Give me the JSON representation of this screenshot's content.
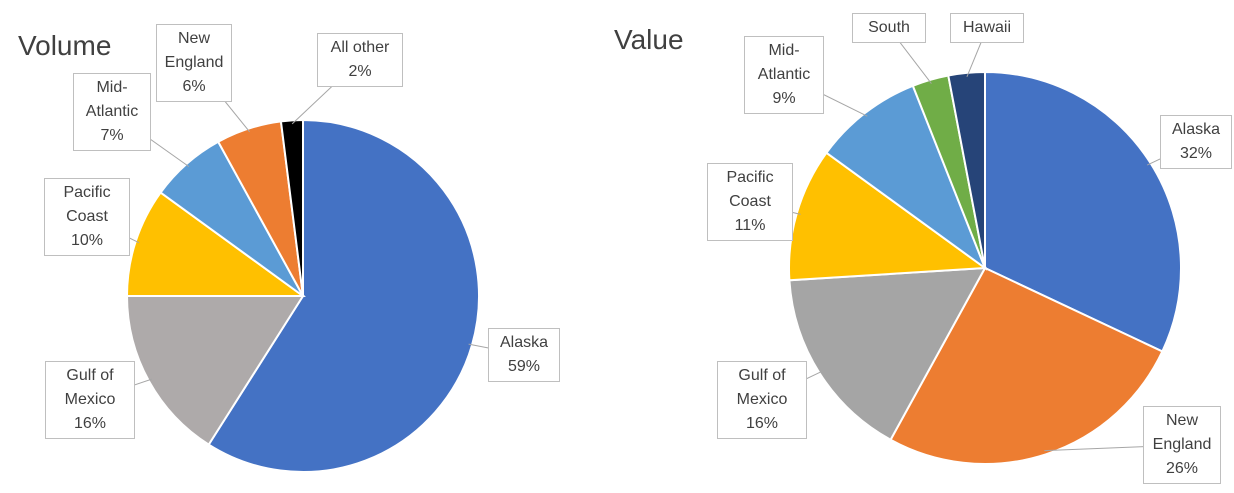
{
  "chart_data": [
    {
      "type": "pie",
      "title": "Volume",
      "categories": [
        "Alaska",
        "Gulf of Mexico",
        "Pacific Coast",
        "Mid-Atlantic",
        "New England",
        "All other"
      ],
      "values": [
        59,
        16,
        10,
        7,
        6,
        2
      ],
      "value_labels": [
        "59%",
        "16%",
        "10%",
        "7%",
        "6%",
        "2%"
      ],
      "colors": [
        "#4472c4",
        "#aeaaaa",
        "#ffc000",
        "#5b9bd5",
        "#ed7d31",
        "#000000"
      ]
    },
    {
      "type": "pie",
      "title": "Value",
      "categories": [
        "Alaska",
        "New England",
        "Gulf of Mexico",
        "Pacific Coast",
        "Mid-Atlantic",
        "South",
        "Hawaii"
      ],
      "values": [
        32,
        26,
        16,
        11,
        9,
        3,
        3
      ],
      "value_labels": [
        "32%",
        "26%",
        "16%",
        "11%",
        "9%",
        null,
        null
      ],
      "colors": [
        "#4472c4",
        "#ed7d31",
        "#a5a5a5",
        "#ffc000",
        "#5b9bd5",
        "#70ad47",
        "#264478"
      ]
    }
  ]
}
